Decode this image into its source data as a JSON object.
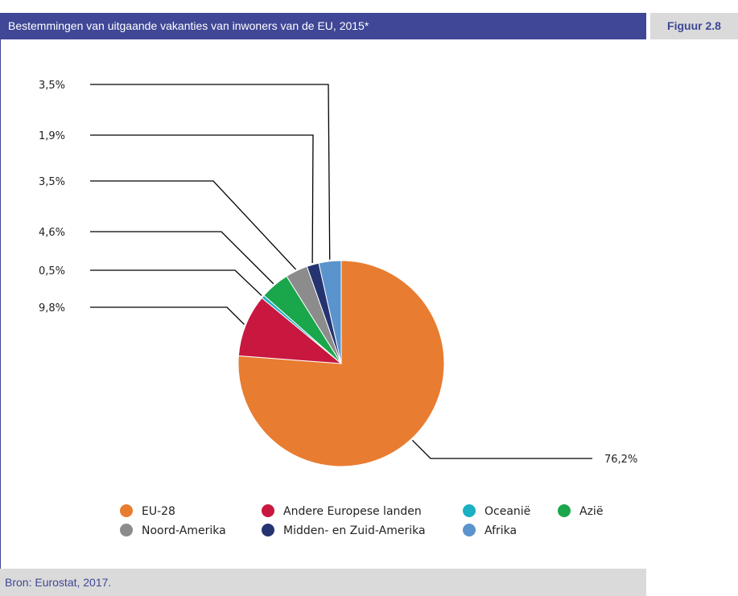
{
  "header": {
    "title": "Bestemmingen van uitgaande vakanties van inwoners van de EU, 2015*",
    "figure_label": "Figuur 2.8"
  },
  "footer": {
    "source": "Bron: Eurostat, 2017."
  },
  "chart_data": {
    "type": "pie",
    "title": "Bestemmingen van uitgaande vakanties van inwoners van de EU, 2015*",
    "slices": [
      {
        "name": "EU-28",
        "value": 76.2,
        "label": "76,2%",
        "color": "#e87c31"
      },
      {
        "name": "Andere Europese landen",
        "value": 9.8,
        "label": "9,8%",
        "color": "#c8183f"
      },
      {
        "name": "Oceanië",
        "value": 0.5,
        "label": "0,5%",
        "color": "#1bb0c2"
      },
      {
        "name": "Azië",
        "value": 4.6,
        "label": "4,6%",
        "color": "#1aa64b"
      },
      {
        "name": "Noord-Amerika",
        "value": 3.5,
        "label": "3,5%",
        "color": "#8c8c8c"
      },
      {
        "name": "Midden- en Zuid-Amerika",
        "value": 1.9,
        "label": "1,9%",
        "color": "#253470"
      },
      {
        "name": "Afrika",
        "value": 3.5,
        "label": "3,5%",
        "color": "#5b93cd"
      }
    ],
    "legend_position": "bottom"
  }
}
